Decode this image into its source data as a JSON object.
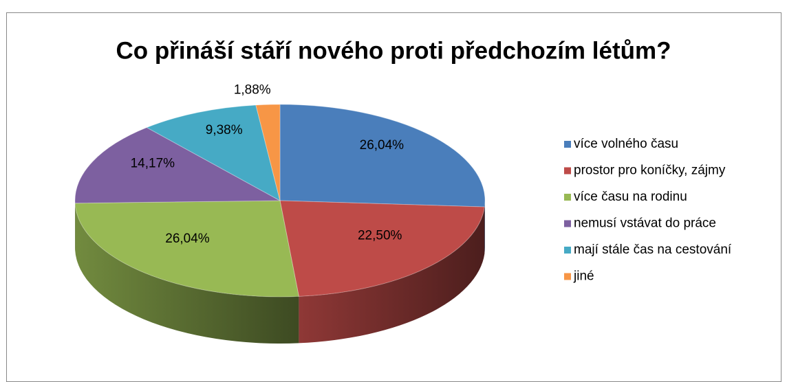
{
  "chart_data": {
    "type": "pie3d",
    "title": "Co přináší stáří nového proti předchozím létům?",
    "categories": [
      "více volného času",
      "prostor pro koníčky, zájmy",
      "více času na rodinu",
      "nemusí vstávat do práce",
      "mají stále čas na cestování",
      "jiné"
    ],
    "values": [
      26.04,
      22.5,
      26.04,
      14.17,
      9.38,
      1.88
    ],
    "value_labels": [
      "26,04%",
      "22,50%",
      "26,04%",
      "14,17%",
      "9,38%",
      "1,88%"
    ],
    "colors": [
      "#4a7ebb",
      "#be4b48",
      "#98b954",
      "#7d60a0",
      "#46aac5",
      "#f79646"
    ],
    "legend": "right"
  }
}
